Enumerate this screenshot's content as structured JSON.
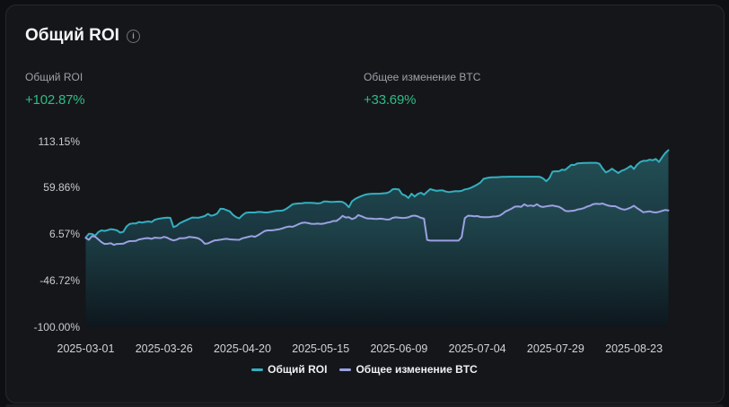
{
  "card": {
    "title": "Общий ROI",
    "info_icon": "i",
    "stats": [
      {
        "label": "Общий ROI",
        "value": "+102.87%"
      },
      {
        "label": "Общее изменение BTC",
        "value": "+33.69%"
      }
    ]
  },
  "colors": {
    "page_bg": "#0e0f13",
    "card_bg": "#15161a",
    "card_border": "#26282d",
    "positive_green": "#2ebd85",
    "roi_line": "#34afbf",
    "btc_line": "#9ba1e0",
    "axis_text": "#cccfd3",
    "title_text": "#f3f4f6",
    "label_text": "#9da1a7"
  },
  "chart_data": {
    "type": "line",
    "title": "Общий ROI",
    "xlabel": "",
    "ylabel": "",
    "grid": false,
    "legend_position": "bottom",
    "y_axis": {
      "min": -100.0,
      "max": 113.15,
      "tick_values": [
        113.15,
        59.86,
        6.57,
        -46.72,
        -100.0
      ],
      "tick_labels": [
        "113.15%",
        "59.86%",
        "6.57%",
        "-46.72%",
        "-100.00%"
      ]
    },
    "x_axis": {
      "tick_day_indices": [
        0,
        25,
        50,
        75,
        100,
        125,
        150,
        175
      ],
      "tick_labels": [
        "2025-03-01",
        "2025-03-26",
        "2025-04-20",
        "2025-05-15",
        "2025-06-09",
        "2025-07-04",
        "2025-07-29",
        "2025-08-23"
      ]
    },
    "dates": [
      "2025-03-01",
      "2025-03-02",
      "2025-03-03",
      "2025-03-04",
      "2025-03-05",
      "2025-03-06",
      "2025-03-07",
      "2025-03-08",
      "2025-03-09",
      "2025-03-10",
      "2025-03-11",
      "2025-03-12",
      "2025-03-13",
      "2025-03-14",
      "2025-03-15",
      "2025-03-16",
      "2025-03-17",
      "2025-03-18",
      "2025-03-19",
      "2025-03-20",
      "2025-03-21",
      "2025-03-22",
      "2025-03-23",
      "2025-03-24",
      "2025-03-25",
      "2025-03-26",
      "2025-03-27",
      "2025-03-28",
      "2025-03-29",
      "2025-03-30",
      "2025-03-31",
      "2025-04-01",
      "2025-04-02",
      "2025-04-03",
      "2025-04-04",
      "2025-04-05",
      "2025-04-06",
      "2025-04-07",
      "2025-04-08",
      "2025-04-09",
      "2025-04-10",
      "2025-04-11",
      "2025-04-12",
      "2025-04-13",
      "2025-04-14",
      "2025-04-15",
      "2025-04-16",
      "2025-04-17",
      "2025-04-18",
      "2025-04-19",
      "2025-04-20",
      "2025-04-21",
      "2025-04-22",
      "2025-04-23",
      "2025-04-24",
      "2025-04-25",
      "2025-04-26",
      "2025-04-27",
      "2025-04-28",
      "2025-04-29",
      "2025-04-30",
      "2025-05-01",
      "2025-05-02",
      "2025-05-03",
      "2025-05-04",
      "2025-05-05",
      "2025-05-06",
      "2025-05-07",
      "2025-05-08",
      "2025-05-09",
      "2025-05-10",
      "2025-05-11",
      "2025-05-12",
      "2025-05-13",
      "2025-05-14",
      "2025-05-15",
      "2025-05-16",
      "2025-05-17",
      "2025-05-18",
      "2025-05-19",
      "2025-05-20",
      "2025-05-21",
      "2025-05-22",
      "2025-05-23",
      "2025-05-24",
      "2025-05-25",
      "2025-05-26",
      "2025-05-27",
      "2025-05-28",
      "2025-05-29",
      "2025-05-30",
      "2025-05-31",
      "2025-06-01",
      "2025-06-02",
      "2025-06-03",
      "2025-06-04",
      "2025-06-05",
      "2025-06-06",
      "2025-06-07",
      "2025-06-08",
      "2025-06-09",
      "2025-06-10",
      "2025-06-11",
      "2025-06-12",
      "2025-06-13",
      "2025-06-14",
      "2025-06-15",
      "2025-06-16",
      "2025-06-17",
      "2025-06-18",
      "2025-06-19",
      "2025-06-20",
      "2025-06-21",
      "2025-06-22",
      "2025-06-23",
      "2025-06-24",
      "2025-06-25",
      "2025-06-26",
      "2025-06-27",
      "2025-06-28",
      "2025-06-29",
      "2025-06-30",
      "2025-07-01",
      "2025-07-02",
      "2025-07-03",
      "2025-07-04",
      "2025-07-05",
      "2025-07-06",
      "2025-07-07",
      "2025-07-08",
      "2025-07-09",
      "2025-07-10",
      "2025-07-11",
      "2025-07-12",
      "2025-07-13",
      "2025-07-14",
      "2025-07-15",
      "2025-07-16",
      "2025-07-17",
      "2025-07-18",
      "2025-07-19",
      "2025-07-20",
      "2025-07-21",
      "2025-07-22",
      "2025-07-23",
      "2025-07-24",
      "2025-07-25",
      "2025-07-26",
      "2025-07-27",
      "2025-07-28",
      "2025-07-29",
      "2025-07-30",
      "2025-07-31",
      "2025-08-01",
      "2025-08-02",
      "2025-08-03",
      "2025-08-04",
      "2025-08-05",
      "2025-08-06",
      "2025-08-07",
      "2025-08-08",
      "2025-08-09",
      "2025-08-10",
      "2025-08-11",
      "2025-08-12",
      "2025-08-13",
      "2025-08-14",
      "2025-08-15",
      "2025-08-16",
      "2025-08-17",
      "2025-08-18",
      "2025-08-19",
      "2025-08-20",
      "2025-08-21",
      "2025-08-22",
      "2025-08-23",
      "2025-08-24",
      "2025-08-25",
      "2025-08-26",
      "2025-08-27",
      "2025-08-28",
      "2025-08-29",
      "2025-08-30",
      "2025-08-31",
      "2025-09-01",
      "2025-09-02",
      "2025-09-03"
    ],
    "series": [
      {
        "name": "Общий ROI",
        "color": "#34afbf",
        "final_label": "+102.87%",
        "values": [
          2.5,
          6.83,
          6.61,
          4.64,
          8.75,
          10.67,
          10.08,
          11.01,
          12.1,
          11.61,
          10.66,
          8.09,
          9.2,
          15.19,
          18.02,
          18.7,
          18.67,
          20.42,
          19.67,
          20.46,
          20.94,
          20.24,
          22.83,
          23.9,
          24.48,
          24.97,
          25.39,
          25.08,
          14.5,
          15.95,
          18.96,
          20.65,
          22.31,
          23.83,
          25.5,
          25.42,
          25.26,
          26.11,
          27.22,
          29.68,
          27.52,
          28.4,
          30.15,
          35.49,
          35.36,
          33.93,
          32.57,
          28.54,
          25.93,
          24.52,
          28.13,
          30.81,
          31.3,
          31.3,
          31.3,
          31.92,
          31.85,
          31.3,
          31.3,
          31.92,
          32.58,
          33.2,
          33.2,
          33.61,
          35.37,
          37.9,
          40.67,
          41.4,
          41.7,
          41.86,
          42.28,
          42.3,
          42.3,
          42.14,
          41.73,
          42.09,
          43.89,
          43.86,
          43.34,
          43.3,
          43.63,
          43.75,
          43.34,
          41.22,
          37.21,
          44.19,
          46.85,
          48.6,
          50.16,
          51.48,
          52.28,
          52.69,
          52.8,
          52.8,
          52.88,
          53.37,
          53.5,
          54.95,
          57.95,
          58.31,
          57.68,
          52.19,
          50.78,
          47.92,
          52.83,
          49.63,
          52.59,
          53.98,
          51.78,
          55.1,
          58.12,
          56.98,
          56.1,
          56.59,
          56.6,
          55.33,
          54.65,
          55.28,
          55.8,
          55.56,
          56.07,
          57.75,
          58.38,
          59.74,
          61.41,
          63.4,
          65.64,
          69.88,
          70.85,
          71.46,
          71.8,
          71.8,
          71.98,
          72.18,
          72.26,
          72.33,
          72.4,
          72.4,
          72.4,
          72.4,
          72.4,
          72.4,
          72.4,
          72.4,
          72.4,
          72.16,
          70.43,
          67.21,
          70.67,
          78.16,
          78.62,
          78.56,
          80.44,
          80.1,
          83.03,
          85.95,
          85.82,
          87.73,
          87.94,
          88.11,
          88.25,
          88.3,
          88.3,
          88.3,
          87.15,
          81.84,
          77.35,
          79.0,
          81.51,
          78.93,
          76.58,
          79.02,
          80.42,
          82.48,
          84.84,
          81.18,
          86.14,
          89.28,
          90.57,
          90.57,
          91.96,
          91.31,
          92.75,
          89.25,
          94.69,
          99.53,
          102.87
        ]
      },
      {
        "name": "Общее изменение BTC",
        "color": "#9ba1e0",
        "final_label": "+33.69%",
        "values": [
          2.0,
          -0.08,
          4.07,
          3.44,
          0.36,
          -2.66,
          -4.9,
          -4.64,
          -4.04,
          -5.85,
          -4.81,
          -4.73,
          -4.51,
          -2.76,
          -1.62,
          -1.52,
          -1.35,
          0.32,
          0.9,
          1.62,
          1.81,
          1.04,
          2.4,
          2.03,
          1.98,
          3.31,
          2.34,
          0.35,
          -0.89,
          -0.04,
          1.7,
          1.78,
          2.07,
          3.3,
          2.82,
          2.38,
          1.55,
          -0.8,
          -4.69,
          -4.19,
          -2.44,
          -0.93,
          -0.51,
          -0.01,
          0.57,
          1.0,
          0.37,
          0.2,
          -0.04,
          -0.14,
          1.61,
          2.48,
          3.34,
          4.19,
          3.41,
          5.13,
          7.39,
          9.81,
          10.68,
          10.7,
          11.05,
          11.66,
          12.18,
          13.28,
          14.55,
          15.24,
          14.82,
          16.27,
          18.01,
          19.36,
          19.78,
          19.01,
          18.33,
          18.16,
          18.57,
          18.21,
          18.57,
          19.53,
          20.15,
          21.49,
          21.47,
          23.99,
          27.36,
          25.48,
          25.81,
          23.66,
          25.0,
          28.35,
          26.94,
          25.45,
          24.3,
          24.3,
          23.99,
          23.86,
          24.23,
          23.81,
          23.19,
          23.31,
          25.1,
          25.73,
          25.33,
          25.0,
          25.09,
          25.72,
          27.27,
          27.66,
          26.76,
          25.12,
          24.15,
          -0.28,
          -1.0,
          -1.0,
          -1.0,
          -1.0,
          -1.0,
          -1.0,
          -1.0,
          -1.0,
          -1.0,
          -1.0,
          2.86,
          24.74,
          27.57,
          27.37,
          26.99,
          27.16,
          26.12,
          25.9,
          25.9,
          26.03,
          26.66,
          26.8,
          27.47,
          29.6,
          32.53,
          34.01,
          35.8,
          38.03,
          38.26,
          37.79,
          40.69,
          38.71,
          39.28,
          38.58,
          40.72,
          38.37,
          37.62,
          38.24,
          38.91,
          39.36,
          38.49,
          37.86,
          35.94,
          33.24,
          32.74,
          33.1,
          33.46,
          34.65,
          35.32,
          36.23,
          37.97,
          39.11,
          40.91,
          41.26,
          40.96,
          41.59,
          40.11,
          39.02,
          38.5,
          38.5,
          36.72,
          35.16,
          34.45,
          35.5,
          36.97,
          39.06,
          36.24,
          33.99,
          31.46,
          32.07,
          32.62,
          31.7,
          31.3,
          31.97,
          33.11,
          34.17,
          33.69
        ]
      }
    ]
  }
}
